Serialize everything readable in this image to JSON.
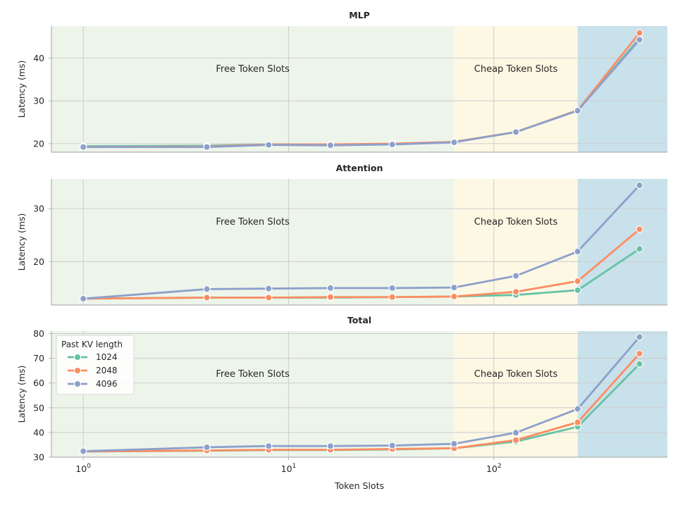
{
  "chart_data": {
    "type": "line",
    "xlabel": "Token Slots",
    "xscale": "log",
    "xlim": [
      0.7,
      700
    ],
    "xticks": [
      {
        "value": 1,
        "base": "10",
        "exp": "0"
      },
      {
        "value": 10,
        "base": "10",
        "exp": "1"
      },
      {
        "value": 100,
        "base": "10",
        "exp": "2"
      }
    ],
    "x": [
      1,
      4,
      8,
      16,
      32,
      64,
      128,
      256,
      512
    ],
    "regions": [
      {
        "label": "Free Token Slots",
        "from": 0.7,
        "to": 64,
        "color": "#edf5ea"
      },
      {
        "label": "Cheap Token Slots",
        "from": 64,
        "to": 256,
        "color": "#fdf8e4"
      },
      {
        "label": "",
        "from": 256,
        "to": 700,
        "color": "#c8e1ea"
      }
    ],
    "legend": {
      "title": "Past KV length",
      "placement": "top-left"
    },
    "panels": [
      {
        "title": "MLP",
        "ylabel": "Latency (ms)",
        "ylim": [
          18,
          47.5
        ],
        "yticks": [
          20,
          30,
          40
        ],
        "series": [
          {
            "name": "1024",
            "color": "#66c2a5",
            "values": [
              19.4,
              19.5,
              19.8,
              19.7,
              19.9,
              20.4,
              22.7,
              27.8,
              44.6
            ]
          },
          {
            "name": "2048",
            "color": "#fc8d62",
            "values": [
              19.2,
              19.3,
              19.8,
              19.8,
              20.0,
              20.4,
              22.7,
              27.8,
              45.9
            ]
          },
          {
            "name": "4096",
            "color": "#8da0cb",
            "values": [
              19.2,
              19.2,
              19.7,
              19.6,
              19.8,
              20.3,
              22.7,
              27.7,
              44.3
            ]
          }
        ]
      },
      {
        "title": "Attention",
        "ylabel": "Latency (ms)",
        "ylim": [
          11.8,
          35.6
        ],
        "yticks": [
          20,
          30
        ],
        "series": [
          {
            "name": "1024",
            "color": "#66c2a5",
            "values": [
              13.0,
              13.2,
              13.2,
              13.2,
              13.3,
              13.4,
              13.7,
              14.6,
              22.4
            ]
          },
          {
            "name": "2048",
            "color": "#fc8d62",
            "values": [
              13.0,
              13.2,
              13.2,
              13.3,
              13.3,
              13.4,
              14.3,
              16.3,
              26.1
            ]
          },
          {
            "name": "4096",
            "color": "#8da0cb",
            "values": [
              13.0,
              14.8,
              14.9,
              15.0,
              15.0,
              15.1,
              17.3,
              21.9,
              34.4
            ]
          }
        ]
      },
      {
        "title": "Total",
        "ylabel": "Latency (ms)",
        "ylim": [
          30,
          81
        ],
        "yticks": [
          30,
          40,
          50,
          60,
          70,
          80
        ],
        "series": [
          {
            "name": "1024",
            "color": "#66c2a5",
            "values": [
              32.3,
              32.6,
              32.9,
              32.9,
              33.1,
              33.6,
              36.3,
              42.3,
              67.7
            ]
          },
          {
            "name": "2048",
            "color": "#fc8d62",
            "values": [
              32.3,
              32.7,
              33.0,
              33.0,
              33.3,
              33.6,
              36.9,
              44.1,
              71.9
            ]
          },
          {
            "name": "4096",
            "color": "#8da0cb",
            "values": [
              32.4,
              34.0,
              34.5,
              34.5,
              34.7,
              35.4,
              39.9,
              49.5,
              78.6
            ]
          }
        ]
      }
    ]
  }
}
